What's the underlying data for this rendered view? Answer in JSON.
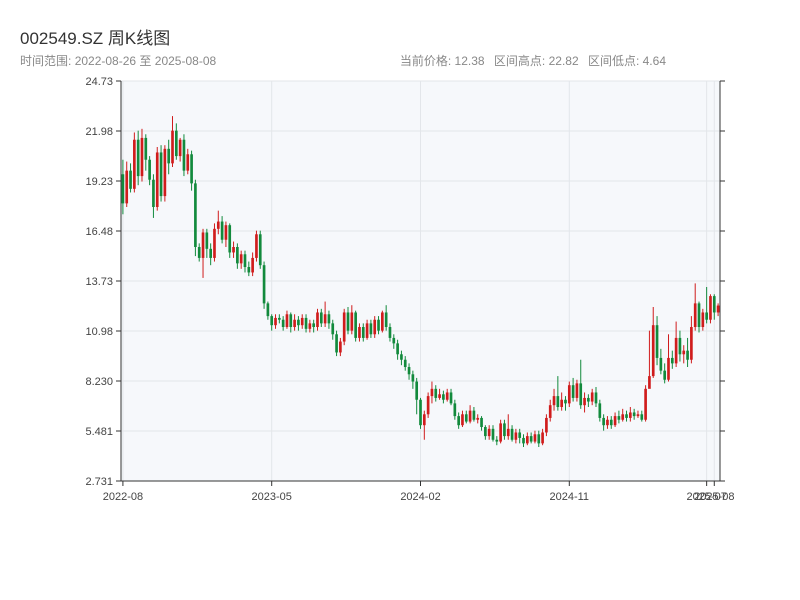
{
  "header": {
    "title": "002549.SZ 周K线图",
    "range_label": "时间范围:",
    "range_start": "2022-08-26",
    "range_sep": "至",
    "range_end": "2025-08-08",
    "current_price": "当前价格: 12.38",
    "high": "区间高点: 22.82",
    "low": "区间低点: 4.64"
  },
  "colors": {
    "up": "#d01c1c",
    "down": "#128a3c",
    "plot_bg": "#f6f8fb",
    "grid": "#e3e6ea"
  },
  "chart_data": {
    "type": "candlestick",
    "title": "002549.SZ 周K线图",
    "ylim": [
      2.731,
      24.73
    ],
    "y_ticks": [
      "24.73",
      "21.98",
      "19.23",
      "16.48",
      "13.73",
      "10.98",
      "8.230",
      "5.481",
      "2.731"
    ],
    "x_ticks": [
      {
        "label": "2022-08",
        "index": 0
      },
      {
        "label": "2023-05",
        "index": 39
      },
      {
        "label": "2024-02",
        "index": 78
      },
      {
        "label": "2024-11",
        "index": 117
      },
      {
        "label": "2025-07",
        "index": 153
      },
      {
        "label": "2025-08",
        "index": 155
      }
    ],
    "grid": true,
    "candles": [
      [
        19.6,
        18.0,
        20.4,
        17.4
      ],
      [
        18.0,
        19.8,
        20.3,
        17.8
      ],
      [
        19.8,
        18.8,
        20.2,
        18.6
      ],
      [
        18.8,
        21.5,
        21.9,
        18.6
      ],
      [
        21.5,
        19.5,
        22.0,
        19.0
      ],
      [
        19.5,
        21.6,
        22.1,
        19.2
      ],
      [
        21.6,
        20.4,
        21.8,
        19.8
      ],
      [
        20.4,
        19.3,
        20.6,
        19.0
      ],
      [
        19.3,
        17.8,
        19.6,
        17.2
      ],
      [
        17.8,
        20.8,
        21.1,
        17.6
      ],
      [
        20.8,
        18.4,
        21.2,
        18.1
      ],
      [
        18.4,
        21.0,
        21.2,
        18.1
      ],
      [
        21.0,
        20.2,
        21.5,
        19.6
      ],
      [
        20.2,
        22.0,
        22.8,
        20.0
      ],
      [
        22.0,
        20.6,
        22.4,
        20.4
      ],
      [
        20.6,
        21.5,
        21.6,
        20.3
      ],
      [
        21.5,
        19.8,
        21.8,
        19.5
      ],
      [
        19.8,
        20.7,
        21.0,
        19.6
      ],
      [
        20.7,
        19.1,
        20.9,
        18.7
      ],
      [
        19.1,
        15.6,
        19.3,
        15.1
      ],
      [
        15.6,
        15.0,
        15.8,
        14.8
      ],
      [
        15.0,
        16.4,
        16.6,
        13.9
      ],
      [
        16.4,
        15.5,
        16.6,
        15.0
      ],
      [
        15.5,
        15.0,
        15.8,
        14.6
      ],
      [
        15.0,
        16.6,
        16.9,
        14.8
      ],
      [
        16.6,
        17.0,
        17.6,
        16.3
      ],
      [
        17.0,
        16.0,
        17.3,
        15.8
      ],
      [
        16.0,
        16.8,
        17.0,
        15.6
      ],
      [
        16.8,
        15.3,
        16.9,
        15.0
      ],
      [
        15.3,
        15.6,
        15.9,
        15.0
      ],
      [
        15.6,
        14.7,
        15.8,
        14.4
      ],
      [
        14.7,
        15.2,
        15.4,
        14.4
      ],
      [
        15.2,
        14.5,
        15.4,
        14.2
      ],
      [
        14.5,
        14.2,
        14.8,
        14.0
      ],
      [
        14.2,
        15.0,
        15.3,
        14.0
      ],
      [
        15.0,
        16.3,
        16.5,
        14.8
      ],
      [
        16.3,
        14.6,
        16.5,
        14.4
      ],
      [
        14.6,
        12.5,
        14.8,
        12.2
      ],
      [
        12.5,
        11.8,
        12.6,
        11.6
      ],
      [
        11.8,
        11.3,
        11.9,
        11.0
      ],
      [
        11.3,
        11.7,
        11.9,
        11.1
      ],
      [
        11.7,
        11.6,
        11.9,
        11.4
      ],
      [
        11.6,
        11.2,
        11.8,
        11.0
      ],
      [
        11.2,
        11.9,
        12.1,
        11.1
      ],
      [
        11.9,
        11.2,
        12.0,
        10.9
      ],
      [
        11.2,
        11.6,
        11.9,
        11.0
      ],
      [
        11.6,
        11.3,
        11.8,
        11.0
      ],
      [
        11.3,
        11.7,
        11.9,
        11.1
      ],
      [
        11.7,
        11.1,
        11.9,
        10.9
      ],
      [
        11.1,
        11.4,
        11.6,
        10.9
      ],
      [
        11.4,
        11.2,
        11.6,
        10.9
      ],
      [
        11.2,
        12.0,
        12.2,
        11.0
      ],
      [
        12.0,
        11.4,
        12.2,
        11.2
      ],
      [
        11.4,
        11.9,
        12.6,
        11.2
      ],
      [
        11.9,
        11.4,
        12.1,
        11.1
      ],
      [
        11.4,
        10.8,
        11.6,
        10.5
      ],
      [
        10.8,
        9.8,
        11.0,
        9.6
      ],
      [
        9.8,
        10.4,
        10.6,
        9.6
      ],
      [
        10.4,
        12.0,
        12.2,
        10.2
      ],
      [
        12.0,
        11.0,
        12.3,
        10.8
      ],
      [
        11.0,
        12.0,
        12.4,
        10.8
      ],
      [
        12.0,
        10.6,
        12.1,
        10.4
      ],
      [
        10.6,
        11.2,
        11.4,
        10.4
      ],
      [
        11.2,
        10.6,
        11.4,
        10.4
      ],
      [
        10.6,
        11.4,
        11.6,
        10.5
      ],
      [
        11.4,
        10.8,
        11.6,
        10.6
      ],
      [
        10.8,
        11.6,
        11.8,
        10.6
      ],
      [
        11.6,
        11.0,
        11.8,
        10.8
      ],
      [
        11.0,
        12.0,
        12.1,
        10.9
      ],
      [
        12.0,
        11.2,
        12.4,
        11.0
      ],
      [
        11.2,
        10.6,
        11.4,
        10.4
      ],
      [
        10.6,
        10.3,
        10.8,
        10.0
      ],
      [
        10.3,
        9.7,
        10.5,
        9.4
      ],
      [
        9.7,
        9.4,
        9.9,
        9.1
      ],
      [
        9.4,
        9.0,
        9.6,
        8.8
      ],
      [
        9.0,
        8.6,
        9.2,
        8.3
      ],
      [
        8.6,
        8.2,
        8.8,
        7.8
      ],
      [
        8.2,
        7.2,
        8.4,
        6.4
      ],
      [
        7.2,
        5.8,
        7.3,
        5.6
      ],
      [
        5.8,
        6.4,
        6.6,
        5.0
      ],
      [
        6.4,
        7.4,
        7.6,
        6.2
      ],
      [
        7.4,
        7.8,
        8.2,
        7.0
      ],
      [
        7.8,
        7.3,
        8.0,
        7.1
      ],
      [
        7.3,
        7.5,
        7.8,
        7.2
      ],
      [
        7.5,
        7.2,
        7.7,
        7.0
      ],
      [
        7.2,
        7.6,
        7.8,
        7.1
      ],
      [
        7.6,
        7.0,
        7.8,
        6.9
      ],
      [
        7.0,
        6.3,
        7.2,
        6.1
      ],
      [
        6.3,
        5.8,
        6.5,
        5.6
      ],
      [
        5.8,
        6.4,
        6.6,
        5.7
      ],
      [
        6.4,
        6.0,
        6.6,
        5.9
      ],
      [
        6.0,
        6.6,
        6.9,
        5.9
      ],
      [
        6.6,
        6.1,
        6.8,
        6.0
      ],
      [
        6.1,
        6.2,
        6.4,
        5.9
      ],
      [
        6.2,
        5.7,
        6.3,
        5.5
      ],
      [
        5.7,
        5.2,
        5.8,
        5.0
      ],
      [
        5.2,
        5.6,
        5.8,
        5.0
      ],
      [
        5.6,
        5.0,
        5.8,
        4.9
      ],
      [
        5.0,
        4.9,
        5.2,
        4.7
      ],
      [
        4.9,
        5.9,
        6.1,
        4.8
      ],
      [
        5.9,
        5.2,
        6.1,
        5.0
      ],
      [
        5.2,
        5.6,
        6.4,
        5.0
      ],
      [
        5.6,
        5.0,
        5.8,
        4.9
      ],
      [
        5.0,
        5.4,
        5.6,
        4.8
      ],
      [
        5.4,
        5.1,
        5.6,
        4.8
      ],
      [
        5.1,
        4.8,
        5.3,
        4.6
      ],
      [
        4.8,
        5.2,
        5.4,
        4.7
      ],
      [
        5.2,
        4.9,
        5.4,
        4.8
      ],
      [
        4.9,
        5.3,
        5.5,
        4.8
      ],
      [
        5.3,
        4.8,
        5.5,
        4.6
      ],
      [
        4.8,
        5.4,
        5.6,
        4.7
      ],
      [
        5.4,
        6.2,
        6.4,
        5.2
      ],
      [
        6.2,
        6.9,
        7.2,
        6.0
      ],
      [
        6.9,
        7.4,
        7.8,
        6.6
      ],
      [
        7.4,
        6.8,
        8.5,
        6.6
      ],
      [
        6.8,
        7.2,
        7.6,
        6.6
      ],
      [
        7.2,
        7.0,
        7.4,
        6.6
      ],
      [
        7.0,
        8.0,
        8.2,
        6.8
      ],
      [
        8.0,
        7.3,
        8.4,
        7.1
      ],
      [
        7.3,
        8.1,
        8.3,
        7.1
      ],
      [
        8.1,
        6.9,
        9.4,
        6.7
      ],
      [
        6.9,
        7.3,
        7.6,
        6.5
      ],
      [
        7.3,
        7.1,
        7.5,
        6.8
      ],
      [
        7.1,
        7.6,
        7.8,
        6.9
      ],
      [
        7.6,
        7.0,
        7.9,
        6.8
      ],
      [
        7.0,
        6.2,
        7.2,
        6.0
      ],
      [
        6.2,
        5.8,
        6.4,
        5.5
      ],
      [
        5.8,
        6.1,
        6.3,
        5.6
      ],
      [
        6.1,
        5.8,
        6.3,
        5.6
      ],
      [
        5.8,
        6.3,
        6.5,
        5.7
      ],
      [
        6.3,
        6.1,
        6.6,
        5.9
      ],
      [
        6.1,
        6.4,
        6.7,
        6.0
      ],
      [
        6.4,
        6.2,
        6.6,
        6.0
      ],
      [
        6.2,
        6.5,
        6.8,
        6.0
      ],
      [
        6.5,
        6.3,
        6.7,
        6.1
      ],
      [
        6.3,
        6.4,
        6.6,
        6.2
      ],
      [
        6.4,
        6.1,
        6.6,
        6.0
      ],
      [
        6.1,
        7.8,
        8.0,
        6.0
      ],
      [
        7.8,
        8.5,
        11.0,
        8.3
      ],
      [
        8.5,
        11.3,
        12.3,
        8.4
      ],
      [
        11.3,
        9.5,
        11.8,
        9.1
      ],
      [
        9.5,
        8.8,
        10.0,
        8.6
      ],
      [
        8.8,
        8.3,
        9.2,
        8.1
      ],
      [
        8.3,
        9.5,
        10.8,
        8.2
      ],
      [
        9.5,
        9.2,
        9.9,
        8.9
      ],
      [
        9.2,
        10.6,
        11.5,
        9.0
      ],
      [
        10.6,
        9.7,
        11.0,
        9.3
      ],
      [
        9.7,
        9.9,
        10.2,
        9.2
      ],
      [
        9.9,
        9.4,
        10.6,
        9.0
      ],
      [
        9.4,
        11.2,
        11.8,
        9.2
      ],
      [
        11.2,
        12.5,
        13.6,
        11.0
      ],
      [
        12.5,
        11.2,
        12.6,
        10.9
      ],
      [
        11.2,
        12.0,
        12.2,
        11.0
      ],
      [
        12.0,
        11.6,
        13.4,
        11.4
      ],
      [
        11.6,
        12.9,
        13.0,
        11.4
      ],
      [
        12.9,
        12.0,
        13.0,
        11.6
      ],
      [
        12.0,
        12.38,
        12.5,
        11.8
      ]
    ]
  }
}
